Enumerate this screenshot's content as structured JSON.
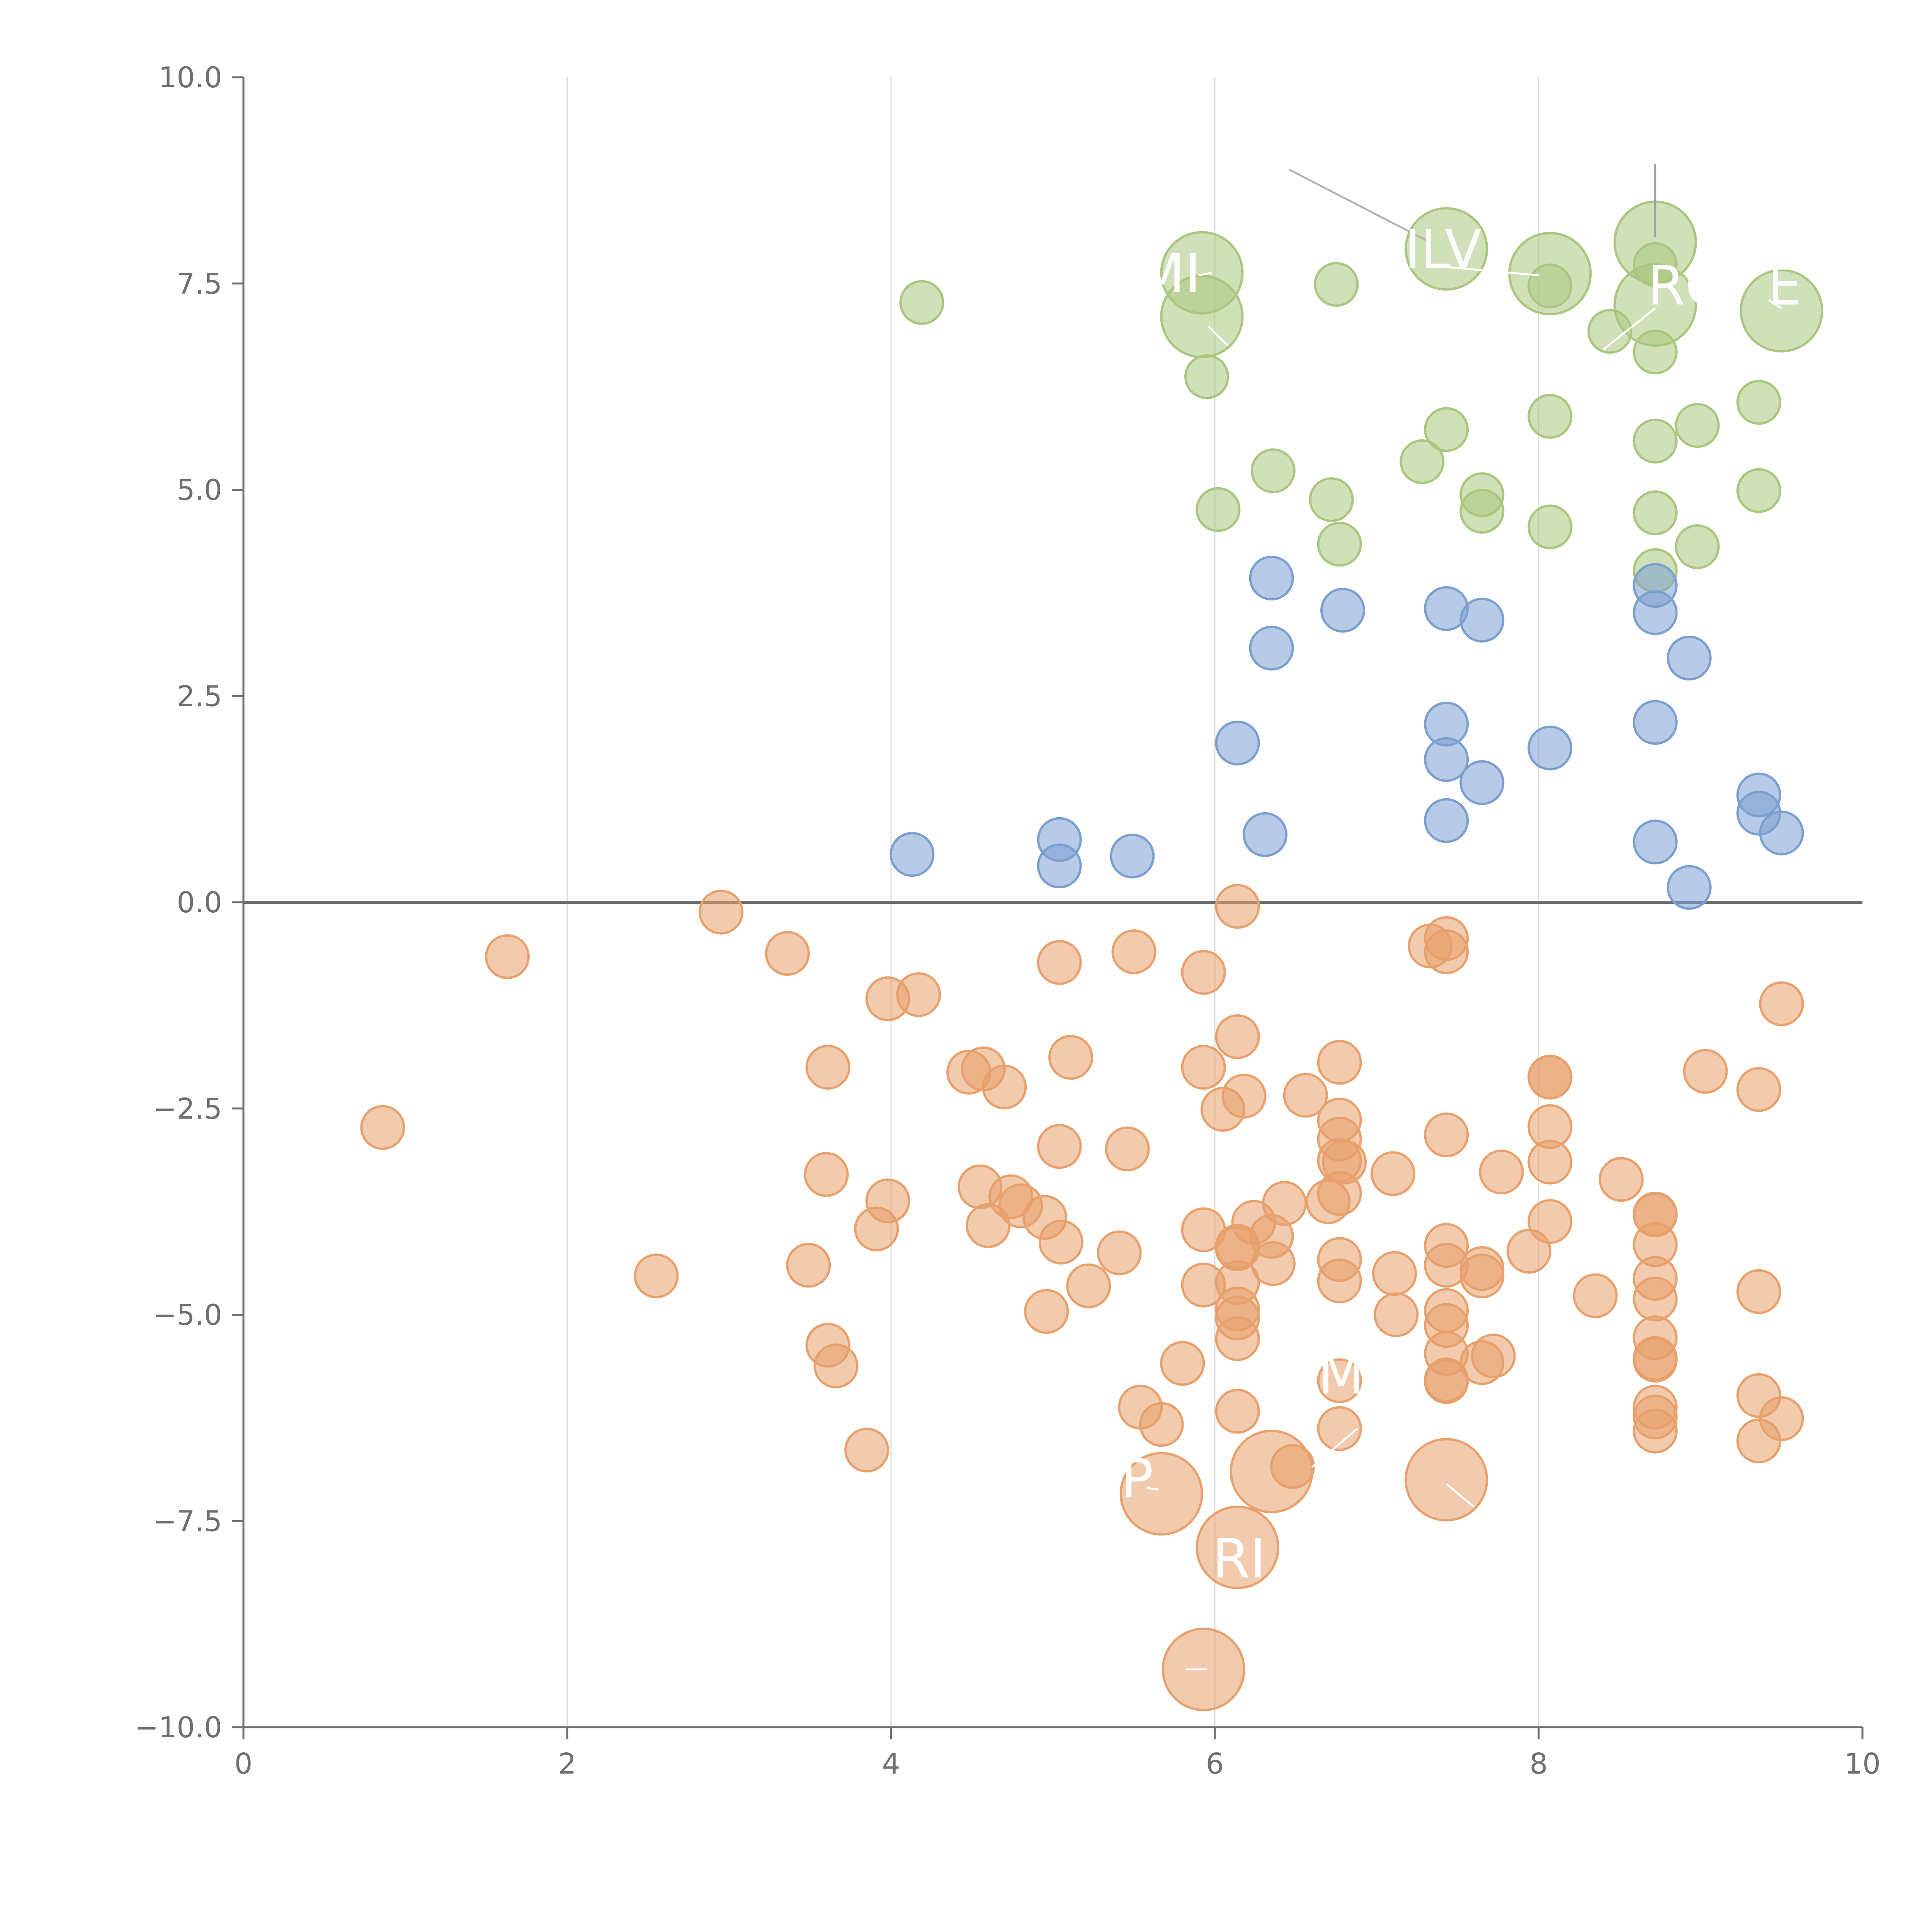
{
  "chart_data": {
    "type": "scatter",
    "title": "",
    "xlabel": "",
    "ylabel": "",
    "xlim": [
      0,
      10
    ],
    "ylim": [
      -10,
      10
    ],
    "grid": {
      "x": true,
      "y": false
    },
    "zero_line_y": 0,
    "x_ticks": [
      "0",
      "2",
      "4",
      "6",
      "8",
      "10"
    ],
    "x_tick_values": [
      0,
      2,
      4,
      6,
      8,
      10
    ],
    "y_ticks": [
      "−10.0",
      "−7.5",
      "−5.0",
      "−2.5",
      "0.0",
      "2.5",
      "5.0",
      "7.5",
      "10.0"
    ],
    "y_tick_values": [
      -10,
      -7.5,
      -5,
      -2.5,
      0,
      2.5,
      5,
      7.5,
      10
    ],
    "colors": {
      "green": "#a9c77e",
      "blue": "#7b9fd1",
      "orange": "#e8a16c",
      "axis": "#6f6f6f",
      "grid": "#d9d9d9",
      "label": "#ffffff"
    },
    "series": [
      {
        "name": "green",
        "color": "#a9c77e",
        "points": [
          [
            4.19,
            7.27
          ],
          [
            5.95,
            6.37
          ],
          [
            6.02,
            4.76
          ],
          [
            6.36,
            5.23
          ],
          [
            6.72,
            4.88
          ],
          [
            6.77,
            4.34
          ],
          [
            6.75,
            7.49
          ],
          [
            7.28,
            5.34
          ],
          [
            7.43,
            5.73
          ],
          [
            7.65,
            4.94
          ],
          [
            7.65,
            4.74
          ],
          [
            8.07,
            5.89
          ],
          [
            8.07,
            4.55
          ],
          [
            8.07,
            7.47
          ],
          [
            8.44,
            6.92
          ],
          [
            8.72,
            6.67
          ],
          [
            8.72,
            5.59
          ],
          [
            8.72,
            4.72
          ],
          [
            8.72,
            4.02
          ],
          [
            8.72,
            7.73
          ],
          [
            8.98,
            5.78
          ],
          [
            8.98,
            4.31
          ],
          [
            9.36,
            6.06
          ],
          [
            9.36,
            4.99
          ]
        ],
        "big_points": [
          [
            5.92,
            7.63
          ],
          [
            5.92,
            7.1
          ],
          [
            7.43,
            7.92
          ],
          [
            8.07,
            7.62
          ],
          [
            8.72,
            8.0
          ],
          [
            8.72,
            7.24
          ],
          [
            9.5,
            7.17
          ]
        ]
      },
      {
        "name": "blue",
        "color": "#7b9fd1",
        "points": [
          [
            4.13,
            0.58
          ],
          [
            5.04,
            0.76
          ],
          [
            5.04,
            0.44
          ],
          [
            5.49,
            0.56
          ],
          [
            6.14,
            1.93
          ],
          [
            6.31,
            0.82
          ],
          [
            6.35,
            3.93
          ],
          [
            6.35,
            3.08
          ],
          [
            6.79,
            3.54
          ],
          [
            7.43,
            3.56
          ],
          [
            7.43,
            2.16
          ],
          [
            7.43,
            1.73
          ],
          [
            7.43,
            0.99
          ],
          [
            7.65,
            3.42
          ],
          [
            7.65,
            1.45
          ],
          [
            8.07,
            1.87
          ],
          [
            8.72,
            3.84
          ],
          [
            8.72,
            3.51
          ],
          [
            8.72,
            2.18
          ],
          [
            8.72,
            0.73
          ],
          [
            8.93,
            2.96
          ],
          [
            8.93,
            0.18
          ],
          [
            9.36,
            1.3
          ],
          [
            9.36,
            1.08
          ],
          [
            9.5,
            0.84
          ]
        ],
        "big_points": []
      },
      {
        "name": "orange",
        "color": "#e8a16c",
        "points": [
          [
            0.86,
            -2.73
          ],
          [
            1.63,
            -0.66
          ],
          [
            2.55,
            -4.53
          ],
          [
            2.95,
            -0.12
          ],
          [
            3.36,
            -0.62
          ],
          [
            3.49,
            -4.4
          ],
          [
            3.6,
            -3.3
          ],
          [
            3.61,
            -2.0
          ],
          [
            3.61,
            -5.37
          ],
          [
            3.66,
            -5.62
          ],
          [
            3.85,
            -6.64
          ],
          [
            3.91,
            -3.96
          ],
          [
            3.98,
            -3.62
          ],
          [
            3.98,
            -1.17
          ],
          [
            4.17,
            -1.12
          ],
          [
            4.48,
            -2.06
          ],
          [
            4.55,
            -3.45
          ],
          [
            4.57,
            -2.02
          ],
          [
            4.6,
            -3.92
          ],
          [
            4.7,
            -2.24
          ],
          [
            4.74,
            -3.57
          ],
          [
            4.8,
            -3.68
          ],
          [
            4.95,
            -3.82
          ],
          [
            4.96,
            -4.96
          ],
          [
            5.04,
            -0.73
          ],
          [
            5.04,
            -2.96
          ],
          [
            5.05,
            -4.12
          ],
          [
            5.11,
            -1.88
          ],
          [
            5.22,
            -4.65
          ],
          [
            5.41,
            -4.25
          ],
          [
            5.46,
            -2.99
          ],
          [
            5.5,
            -0.6
          ],
          [
            5.54,
            -6.12
          ],
          [
            5.67,
            -6.33
          ],
          [
            5.8,
            -5.59
          ],
          [
            5.93,
            -0.85
          ],
          [
            5.93,
            -2.0
          ],
          [
            5.93,
            -3.97
          ],
          [
            5.93,
            -4.64
          ],
          [
            6.05,
            -2.51
          ],
          [
            6.14,
            -0.05
          ],
          [
            6.14,
            -1.63
          ],
          [
            6.14,
            -4.2
          ],
          [
            6.14,
            -4.17
          ],
          [
            6.14,
            -4.61
          ],
          [
            6.14,
            -4.93
          ],
          [
            6.14,
            -5.04
          ],
          [
            6.14,
            -5.29
          ],
          [
            6.14,
            -6.17
          ],
          [
            6.18,
            -2.35
          ],
          [
            6.24,
            -3.88
          ],
          [
            6.35,
            -4.05
          ],
          [
            6.36,
            -4.38
          ],
          [
            6.43,
            -3.65
          ],
          [
            6.48,
            -6.84
          ],
          [
            6.56,
            -2.34
          ],
          [
            6.7,
            -3.63
          ],
          [
            6.77,
            -1.94
          ],
          [
            6.77,
            -2.64
          ],
          [
            6.77,
            -2.87
          ],
          [
            6.77,
            -3.13
          ],
          [
            6.77,
            -3.53
          ],
          [
            6.77,
            -4.33
          ],
          [
            6.77,
            -4.59
          ],
          [
            6.77,
            -5.8
          ],
          [
            6.77,
            -6.38
          ],
          [
            6.8,
            -3.15
          ],
          [
            7.1,
            -3.29
          ],
          [
            7.11,
            -4.5
          ],
          [
            7.12,
            -5.0
          ],
          [
            7.33,
            -0.53
          ],
          [
            7.43,
            -0.44
          ],
          [
            7.43,
            -0.6
          ],
          [
            7.43,
            -2.82
          ],
          [
            7.43,
            -4.16
          ],
          [
            7.43,
            -4.4
          ],
          [
            7.43,
            -4.95
          ],
          [
            7.43,
            -5.13
          ],
          [
            7.43,
            -5.47
          ],
          [
            7.43,
            -5.81
          ],
          [
            7.43,
            -5.79
          ],
          [
            7.65,
            -4.53
          ],
          [
            7.65,
            -4.44
          ],
          [
            7.65,
            -5.58
          ],
          [
            7.72,
            -5.5
          ],
          [
            7.77,
            -3.27
          ],
          [
            7.94,
            -4.23
          ],
          [
            8.07,
            -2.12
          ],
          [
            8.07,
            -2.12
          ],
          [
            8.07,
            -2.72
          ],
          [
            8.07,
            -3.15
          ],
          [
            8.07,
            -3.87
          ],
          [
            8.35,
            -4.77
          ],
          [
            8.51,
            -3.36
          ],
          [
            8.72,
            -3.78
          ],
          [
            8.72,
            -3.79
          ],
          [
            8.72,
            -4.15
          ],
          [
            8.72,
            -4.56
          ],
          [
            8.72,
            -4.81
          ],
          [
            8.72,
            -5.28
          ],
          [
            8.72,
            -5.53
          ],
          [
            8.72,
            -5.55
          ],
          [
            8.72,
            -6.12
          ],
          [
            8.72,
            -6.24
          ],
          [
            8.72,
            -6.41
          ],
          [
            9.03,
            -2.05
          ],
          [
            9.36,
            -2.27
          ],
          [
            9.36,
            -4.72
          ],
          [
            9.36,
            -5.98
          ],
          [
            9.36,
            -6.53
          ],
          [
            9.5,
            -1.23
          ],
          [
            9.5,
            -6.26
          ]
        ],
        "big_points": [
          [
            5.67,
            -7.17
          ],
          [
            6.14,
            -7.82
          ],
          [
            6.35,
            -6.9
          ],
          [
            7.43,
            -7.0
          ],
          [
            5.93,
            -9.3
          ]
        ]
      }
    ],
    "annotations": [
      {
        "text": "MI",
        "x": 5.72,
        "y": 7.63
      },
      {
        "text": "ILV",
        "x": 7.41,
        "y": 7.92
      },
      {
        "text": "RO",
        "x": 8.92,
        "y": 7.48
      },
      {
        "text": "E",
        "x": 9.52,
        "y": 7.48
      },
      {
        "text": "M",
        "x": 6.78,
        "y": -5.72
      },
      {
        "text": "P",
        "x": 5.52,
        "y": -6.98
      },
      {
        "text": "RI",
        "x": 6.15,
        "y": -7.95
      }
    ],
    "leader_lines": [
      {
        "from": [
          6.46,
          8.88
        ],
        "to": [
          7.33,
          8.0
        ],
        "color": "#b4b4b4"
      },
      {
        "from": [
          8.72,
          8.95
        ],
        "to": [
          8.72,
          8.06
        ],
        "color": "#a0a0a0"
      },
      {
        "from": [
          7.43,
          7.7
        ],
        "to": [
          8.0,
          7.6
        ],
        "color": "#ffffff"
      },
      {
        "from": [
          5.9,
          7.6
        ],
        "to": [
          5.98,
          7.63
        ],
        "color": "#ffffff"
      },
      {
        "from": [
          5.96,
          6.98
        ],
        "to": [
          6.08,
          6.75
        ],
        "color": "#ffffff"
      },
      {
        "from": [
          8.4,
          6.7
        ],
        "to": [
          8.72,
          7.2
        ],
        "color": "#ffffff"
      },
      {
        "from": [
          9.42,
          7.3
        ],
        "to": [
          9.5,
          7.2
        ],
        "color": "#ffffff"
      },
      {
        "from": [
          6.6,
          -6.85
        ],
        "to": [
          6.88,
          -6.38
        ],
        "color": "#ffffff"
      },
      {
        "from": [
          5.58,
          -7.1
        ],
        "to": [
          5.65,
          -7.12
        ],
        "color": "#ffffff"
      },
      {
        "from": [
          7.43,
          -7.05
        ],
        "to": [
          7.6,
          -7.33
        ],
        "color": "#ffffff"
      },
      {
        "from": [
          5.82,
          -9.3
        ],
        "to": [
          5.95,
          -9.3
        ],
        "color": "#ffffff"
      }
    ]
  }
}
